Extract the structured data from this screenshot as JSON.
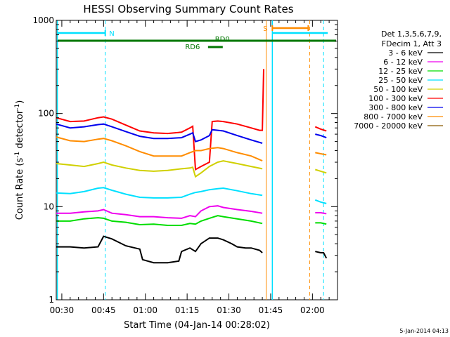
{
  "chart_data": {
    "type": "line",
    "title": "HESSI Observing Summary Count Rates",
    "xlabel": "Start Time (04-Jan-14 00:28:02)",
    "ylabel_main": "Count Rate (s",
    "ylabel_sup1": "-1",
    "ylabel_mid": " detector",
    "ylabel_sup2": "-1",
    "ylabel_end": ")",
    "x_unit": "minutes after 00:28:02",
    "xlim": [
      0,
      101
    ],
    "ylim": [
      1,
      1000
    ],
    "y_scale": "log",
    "x_ticks": [
      {
        "label": "00:30",
        "t": 2
      },
      {
        "label": "00:45",
        "t": 17
      },
      {
        "label": "01:00",
        "t": 32
      },
      {
        "label": "01:15",
        "t": 47
      },
      {
        "label": "01:30",
        "t": 62
      },
      {
        "label": "01:45",
        "t": 77
      },
      {
        "label": "02:00",
        "t": 92
      }
    ],
    "y_ticks": [
      {
        "label": "1",
        "v": 1
      },
      {
        "label": "10",
        "v": 10
      },
      {
        "label": "100",
        "v": 100
      },
      {
        "label": "1000",
        "v": 1000
      }
    ],
    "legend_placement": "right",
    "legend_header": [
      "Det 1,3,5,6,7,9,",
      "FDecim 1, Att 3"
    ],
    "series": [
      {
        "name": "3 - 6 keV",
        "color": "#000000",
        "x": [
          0,
          5,
          10,
          15,
          17,
          20,
          25,
          30,
          31,
          35,
          40,
          44,
          45,
          48,
          50,
          52,
          55,
          58,
          60,
          63,
          65,
          68,
          70,
          73,
          74,
          93,
          95,
          96,
          97
        ],
        "y": [
          3.7,
          3.7,
          3.6,
          3.7,
          4.8,
          4.5,
          3.8,
          3.5,
          2.7,
          2.5,
          2.5,
          2.6,
          3.3,
          3.6,
          3.3,
          4.0,
          4.6,
          4.6,
          4.4,
          4.0,
          3.7,
          3.6,
          3.6,
          3.4,
          3.2,
          3.3,
          3.2,
          3.2,
          2.8
        ]
      },
      {
        "name": "6 - 12 keV",
        "color": "#ee00ee",
        "x": [
          0,
          5,
          10,
          15,
          17,
          20,
          25,
          30,
          35,
          40,
          45,
          48,
          50,
          52,
          55,
          58,
          60,
          65,
          70,
          74,
          93,
          95,
          97
        ],
        "y": [
          8.5,
          8.5,
          8.8,
          9.0,
          9.3,
          8.5,
          8.2,
          7.8,
          7.8,
          7.6,
          7.5,
          8.0,
          7.8,
          9.0,
          10.0,
          10.2,
          9.8,
          9.3,
          8.9,
          8.5,
          8.6,
          8.6,
          8.4
        ]
      },
      {
        "name": "12 - 25 keV",
        "color": "#00dd00",
        "x": [
          0,
          5,
          10,
          15,
          17,
          20,
          25,
          30,
          35,
          40,
          45,
          48,
          50,
          52,
          55,
          58,
          60,
          65,
          70,
          74,
          93,
          95,
          97
        ],
        "y": [
          7.0,
          7.0,
          7.4,
          7.6,
          7.5,
          7.0,
          6.8,
          6.4,
          6.5,
          6.3,
          6.3,
          6.6,
          6.5,
          7.0,
          7.5,
          8.0,
          7.8,
          7.4,
          7.0,
          6.6,
          6.7,
          6.7,
          6.5
        ]
      },
      {
        "name": "25 - 50 keV",
        "color": "#00e0ff",
        "x": [
          0,
          5,
          10,
          15,
          17,
          20,
          25,
          30,
          35,
          40,
          45,
          48,
          50,
          52,
          55,
          58,
          60,
          65,
          70,
          74,
          93,
          95,
          97
        ],
        "y": [
          14,
          13.8,
          14.5,
          15.8,
          16,
          15,
          13.6,
          12.6,
          12.4,
          12.4,
          12.6,
          13.6,
          14.2,
          14.5,
          15.2,
          15.6,
          15.8,
          14.8,
          13.8,
          13.2,
          11.8,
          11.2,
          10.8
        ]
      },
      {
        "name": "50 - 100 keV",
        "color": "#d0d000",
        "x": [
          0,
          5,
          10,
          15,
          17,
          20,
          25,
          30,
          35,
          40,
          45,
          48,
          49,
          50,
          52,
          55,
          58,
          60,
          65,
          70,
          74,
          93,
          95,
          97
        ],
        "y": [
          29,
          28,
          27,
          29,
          30,
          28,
          26,
          24.5,
          24,
          24.5,
          25.5,
          26,
          26.5,
          21,
          23,
          27,
          30,
          31,
          29,
          27,
          25.5,
          25,
          24,
          23
        ]
      },
      {
        "name": "100 - 300 keV",
        "color": "#ff0000",
        "x": [
          0,
          5,
          10,
          15,
          17,
          20,
          25,
          30,
          35,
          40,
          45,
          48,
          49,
          50,
          52,
          55,
          56,
          58,
          60,
          65,
          70,
          73,
          74,
          74.5,
          93,
          95,
          97
        ],
        "y": [
          90,
          82,
          83,
          90,
          92,
          87,
          75,
          65,
          62,
          61,
          63,
          70,
          73,
          25,
          27,
          30,
          82,
          83,
          82,
          77,
          70,
          66,
          66,
          300,
          72,
          68,
          65
        ]
      },
      {
        "name": "300 - 800 keV",
        "color": "#0000ee",
        "x": [
          0,
          5,
          10,
          15,
          17,
          20,
          25,
          30,
          35,
          40,
          45,
          48,
          49,
          50,
          52,
          55,
          56,
          58,
          60,
          65,
          70,
          74,
          93,
          95,
          97
        ],
        "y": [
          77,
          70,
          72,
          76,
          77,
          72,
          64,
          57,
          54,
          54,
          55,
          60,
          62,
          50,
          52,
          58,
          67,
          66,
          65,
          58,
          52,
          48,
          60,
          58,
          55
        ]
      },
      {
        "name": "800 - 7000 keV",
        "color": "#ff8c00",
        "x": [
          0,
          5,
          10,
          15,
          17,
          20,
          25,
          30,
          35,
          40,
          45,
          48,
          50,
          52,
          55,
          58,
          60,
          65,
          70,
          74,
          93,
          95,
          97
        ],
        "y": [
          56,
          51,
          50,
          53,
          54,
          51,
          45,
          39,
          35,
          35,
          35,
          38,
          40,
          40,
          42,
          43,
          42,
          38,
          35,
          31,
          38,
          37,
          36
        ]
      },
      {
        "name": "7000 - 20000 keV",
        "color": "#8b5a00",
        "x": [],
        "y": []
      }
    ],
    "annotations": [
      {
        "label": "N",
        "color": "#00e0ff"
      },
      {
        "label": "S",
        "color": "#ff8c00"
      },
      {
        "label": "RD0",
        "color": "#007700"
      },
      {
        "label": "RD6",
        "color": "#007700"
      }
    ]
  },
  "timestamp": "5-Jan-2014 04:13"
}
